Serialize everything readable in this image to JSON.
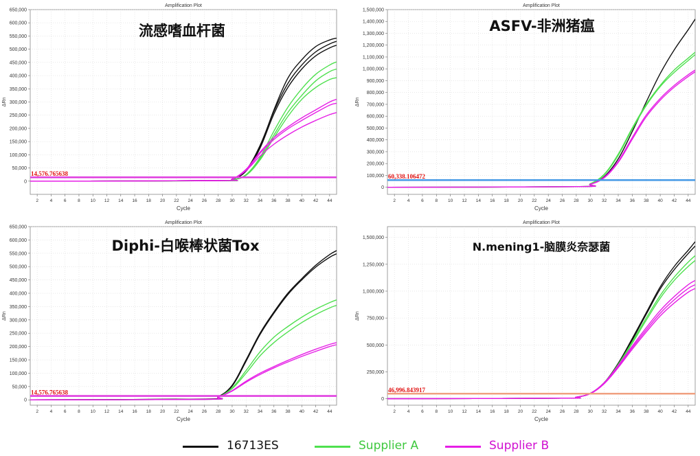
{
  "legend": [
    {
      "name": "16713ES",
      "color": "#111111",
      "label_color": "#111111"
    },
    {
      "name": "Supplier A",
      "color": "#4ee04e",
      "label_color": "#3ec83e"
    },
    {
      "name": "Supplier B",
      "color": "#e61ee6",
      "label_color": "#d010d0"
    }
  ],
  "chart_data": [
    {
      "type": "line",
      "plot_title": "Amplification Plot",
      "title": "流感嗜血杆菌",
      "xlabel": "Cycle",
      "ylabel": "ΔRn",
      "xlim": [
        1,
        45
      ],
      "ylim": [
        -50000,
        650000
      ],
      "xticks": [
        2,
        4,
        6,
        8,
        10,
        12,
        14,
        16,
        18,
        20,
        22,
        24,
        26,
        28,
        30,
        32,
        34,
        36,
        38,
        40,
        42,
        44
      ],
      "yticks": [
        0,
        50000,
        100000,
        150000,
        200000,
        250000,
        300000,
        350000,
        400000,
        450000,
        500000,
        550000,
        600000,
        650000
      ],
      "ytick_labels": [
        "0",
        "50,000",
        "100,000",
        "150,000",
        "200,000",
        "250,000",
        "300,000",
        "350,000",
        "400,000",
        "450,000",
        "500,000",
        "550,000",
        "600,000",
        "650,000"
      ],
      "threshold": {
        "label": "14,576.765638",
        "value": 14576.765638,
        "color": "#e040e0"
      },
      "grid": true,
      "series": [
        {
          "group": "16713ES",
          "color": "#111111",
          "x": [
            1,
            28,
            30,
            32,
            34,
            36,
            38,
            40,
            42,
            44,
            45
          ],
          "y": [
            0,
            2000,
            8000,
            40000,
            130000,
            270000,
            390000,
            460000,
            510000,
            535000,
            542000
          ]
        },
        {
          "group": "16713ES",
          "color": "#111111",
          "x": [
            1,
            28,
            30,
            32,
            34,
            36,
            38,
            40,
            42,
            44,
            45
          ],
          "y": [
            0,
            2000,
            8000,
            42000,
            135000,
            265000,
            370000,
            440000,
            490000,
            520000,
            530000
          ]
        },
        {
          "group": "16713ES",
          "color": "#111111",
          "x": [
            1,
            28,
            30,
            32,
            34,
            36,
            38,
            40,
            42,
            44,
            45
          ],
          "y": [
            0,
            2000,
            8000,
            38000,
            125000,
            255000,
            355000,
            425000,
            475000,
            505000,
            515000
          ]
        },
        {
          "group": "Supplier A",
          "color": "#4ee04e",
          "x": [
            1,
            28,
            30,
            32,
            34,
            36,
            38,
            40,
            42,
            44,
            45
          ],
          "y": [
            0,
            1500,
            5000,
            25000,
            90000,
            190000,
            280000,
            350000,
            405000,
            440000,
            452000
          ]
        },
        {
          "group": "Supplier A",
          "color": "#4ee04e",
          "x": [
            1,
            28,
            30,
            32,
            34,
            36,
            38,
            40,
            42,
            44,
            45
          ],
          "y": [
            0,
            1500,
            5000,
            23000,
            85000,
            175000,
            260000,
            325000,
            380000,
            415000,
            425000
          ]
        },
        {
          "group": "Supplier A",
          "color": "#4ee04e",
          "x": [
            1,
            28,
            30,
            32,
            34,
            36,
            38,
            40,
            42,
            44,
            45
          ],
          "y": [
            0,
            1500,
            5000,
            22000,
            80000,
            165000,
            245000,
            310000,
            355000,
            385000,
            392000
          ]
        },
        {
          "group": "Supplier B",
          "color": "#e61ee6",
          "x": [
            1,
            28,
            30,
            32,
            34,
            36,
            38,
            40,
            42,
            44,
            45
          ],
          "y": [
            0,
            2000,
            8000,
            45000,
            110000,
            165000,
            205000,
            240000,
            270000,
            300000,
            310000
          ]
        },
        {
          "group": "Supplier B",
          "color": "#e61ee6",
          "x": [
            1,
            28,
            30,
            32,
            34,
            36,
            38,
            40,
            42,
            44,
            45
          ],
          "y": [
            0,
            2000,
            8000,
            43000,
            105000,
            158000,
            198000,
            230000,
            260000,
            288000,
            295000
          ]
        },
        {
          "group": "Supplier B",
          "color": "#e61ee6",
          "x": [
            1,
            28,
            30,
            32,
            34,
            36,
            38,
            40,
            42,
            44,
            45
          ],
          "y": [
            0,
            2000,
            8000,
            40000,
            95000,
            140000,
            175000,
            205000,
            230000,
            252000,
            260000
          ]
        }
      ]
    },
    {
      "type": "line",
      "plot_title": "Amplification Plot",
      "title": "ASFV-非洲猪瘟",
      "xlabel": "Cycle",
      "ylabel": "ΔRn",
      "xlim": [
        1,
        45
      ],
      "ylim": [
        -60000,
        1500000
      ],
      "xticks": [
        2,
        4,
        6,
        8,
        10,
        12,
        14,
        16,
        18,
        20,
        22,
        24,
        26,
        28,
        30,
        32,
        34,
        36,
        38,
        40,
        42,
        44
      ],
      "yticks": [
        0,
        100000,
        200000,
        300000,
        400000,
        500000,
        600000,
        700000,
        800000,
        900000,
        1000000,
        1100000,
        1200000,
        1300000,
        1400000,
        1500000
      ],
      "ytick_labels": [
        "0",
        "100,000",
        "200,000",
        "300,000",
        "400,000",
        "500,000",
        "600,000",
        "700,000",
        "800,000",
        "900,000",
        "1,000,000",
        "1,100,000",
        "1,200,000",
        "1,300,000",
        "1,400,000",
        "1,500,000"
      ],
      "threshold": {
        "label": "60,338.106472",
        "value": 60338.106472,
        "color": "#4499e6"
      },
      "grid": true,
      "series": [
        {
          "group": "16713ES",
          "color": "#111111",
          "x": [
            1,
            28,
            30,
            32,
            34,
            36,
            38,
            40,
            42,
            44,
            45
          ],
          "y": [
            0,
            5000,
            25000,
            90000,
            240000,
            470000,
            720000,
            960000,
            1160000,
            1330000,
            1420000
          ]
        },
        {
          "group": "Supplier A",
          "color": "#4ee04e",
          "x": [
            1,
            28,
            30,
            32,
            34,
            36,
            38,
            40,
            42,
            44,
            45
          ],
          "y": [
            0,
            5000,
            30000,
            110000,
            280000,
            500000,
            700000,
            860000,
            990000,
            1090000,
            1140000
          ]
        },
        {
          "group": "Supplier A",
          "color": "#4ee04e",
          "x": [
            1,
            28,
            30,
            32,
            34,
            36,
            38,
            40,
            42,
            44,
            45
          ],
          "y": [
            0,
            5000,
            28000,
            105000,
            270000,
            490000,
            690000,
            850000,
            970000,
            1070000,
            1120000
          ]
        },
        {
          "group": "Supplier B",
          "color": "#e61ee6",
          "x": [
            1,
            28,
            30,
            32,
            34,
            36,
            38,
            40,
            42,
            44,
            45
          ],
          "y": [
            0,
            5000,
            25000,
            85000,
            220000,
            420000,
            610000,
            750000,
            860000,
            950000,
            990000
          ]
        },
        {
          "group": "Supplier B",
          "color": "#e61ee6",
          "x": [
            1,
            28,
            30,
            32,
            34,
            36,
            38,
            40,
            42,
            44,
            45
          ],
          "y": [
            0,
            5000,
            24000,
            80000,
            210000,
            405000,
            595000,
            735000,
            845000,
            935000,
            975000
          ]
        }
      ]
    },
    {
      "type": "line",
      "plot_title": "Amplification Plot",
      "title": "Diphi-白喉棒状菌Tox",
      "xlabel": "Cycle",
      "ylabel": "ΔRn",
      "xlim": [
        1,
        45
      ],
      "ylim": [
        -20000,
        650000
      ],
      "xticks": [
        2,
        4,
        6,
        8,
        10,
        12,
        14,
        16,
        18,
        20,
        22,
        24,
        26,
        28,
        30,
        32,
        34,
        36,
        38,
        40,
        42,
        44
      ],
      "yticks": [
        0,
        50000,
        100000,
        150000,
        200000,
        250000,
        300000,
        350000,
        400000,
        450000,
        500000,
        550000,
        600000,
        650000
      ],
      "ytick_labels": [
        "0",
        "50,000",
        "100,000",
        "150,000",
        "200,000",
        "250,000",
        "300,000",
        "350,000",
        "400,000",
        "450,000",
        "500,000",
        "550,000",
        "600,000",
        "650,000"
      ],
      "threshold": {
        "label": "14,576.765638",
        "value": 14576.765638,
        "color": "#e040e0"
      },
      "grid": true,
      "series": [
        {
          "group": "16713ES",
          "color": "#111111",
          "x": [
            1,
            26,
            28,
            30,
            32,
            34,
            36,
            38,
            40,
            42,
            44,
            45
          ],
          "y": [
            0,
            3000,
            12000,
            55000,
            150000,
            250000,
            330000,
            400000,
            455000,
            505000,
            545000,
            560000
          ]
        },
        {
          "group": "16713ES",
          "color": "#111111",
          "x": [
            1,
            26,
            28,
            30,
            32,
            34,
            36,
            38,
            40,
            42,
            44,
            45
          ],
          "y": [
            0,
            3000,
            12000,
            52000,
            145000,
            245000,
            325000,
            395000,
            450000,
            498000,
            535000,
            548000
          ]
        },
        {
          "group": "Supplier A",
          "color": "#4ee04e",
          "x": [
            1,
            26,
            28,
            30,
            32,
            34,
            36,
            38,
            40,
            42,
            44,
            45
          ],
          "y": [
            0,
            2000,
            10000,
            45000,
            110000,
            180000,
            235000,
            275000,
            310000,
            340000,
            365000,
            375000
          ]
        },
        {
          "group": "Supplier A",
          "color": "#4ee04e",
          "x": [
            1,
            26,
            28,
            30,
            32,
            34,
            36,
            38,
            40,
            42,
            44,
            45
          ],
          "y": [
            0,
            2000,
            10000,
            42000,
            100000,
            165000,
            215000,
            255000,
            290000,
            320000,
            345000,
            355000
          ]
        },
        {
          "group": "Supplier B",
          "color": "#e61ee6",
          "x": [
            1,
            26,
            28,
            30,
            32,
            34,
            36,
            38,
            40,
            42,
            44,
            45
          ],
          "y": [
            0,
            2000,
            10000,
            35000,
            70000,
            100000,
            125000,
            148000,
            170000,
            190000,
            208000,
            215000
          ]
        },
        {
          "group": "Supplier B",
          "color": "#e61ee6",
          "x": [
            1,
            26,
            28,
            30,
            32,
            34,
            36,
            38,
            40,
            42,
            44,
            45
          ],
          "y": [
            0,
            2000,
            10000,
            33000,
            66000,
            95000,
            120000,
            142000,
            163000,
            182000,
            200000,
            207000
          ]
        }
      ]
    },
    {
      "type": "line",
      "plot_title": "Amplification Plot",
      "title": "N.mening1-脑膜炎奈瑟菌",
      "xlabel": "Cycle",
      "ylabel": "ΔRn",
      "xlim": [
        1,
        45
      ],
      "ylim": [
        -60000,
        1600000
      ],
      "xticks": [
        2,
        4,
        6,
        8,
        10,
        12,
        14,
        16,
        18,
        20,
        22,
        24,
        26,
        28,
        30,
        32,
        34,
        36,
        38,
        40,
        42,
        44
      ],
      "yticks": [
        0,
        250000,
        500000,
        750000,
        1000000,
        1250000,
        1500000
      ],
      "ytick_labels": [
        "0",
        "250,000",
        "500,000",
        "750,000",
        "1,000,000",
        "1,250,000",
        "1,500,000"
      ],
      "threshold": {
        "label": "46,996.843917",
        "value": 46996.843917,
        "color": "#f0a080"
      },
      "grid": true,
      "series": [
        {
          "group": "16713ES",
          "color": "#111111",
          "x": [
            1,
            26,
            28,
            30,
            32,
            34,
            36,
            38,
            40,
            42,
            44,
            45
          ],
          "y": [
            0,
            5000,
            15000,
            50000,
            150000,
            330000,
            560000,
            800000,
            1040000,
            1230000,
            1380000,
            1460000
          ]
        },
        {
          "group": "16713ES",
          "color": "#111111",
          "x": [
            1,
            26,
            28,
            30,
            32,
            34,
            36,
            38,
            40,
            42,
            44,
            45
          ],
          "y": [
            0,
            5000,
            15000,
            48000,
            145000,
            320000,
            545000,
            785000,
            1020000,
            1200000,
            1350000,
            1420000
          ]
        },
        {
          "group": "Supplier A",
          "color": "#4ee04e",
          "x": [
            1,
            26,
            28,
            30,
            32,
            34,
            36,
            38,
            40,
            42,
            44,
            45
          ],
          "y": [
            0,
            5000,
            15000,
            50000,
            150000,
            320000,
            530000,
            750000,
            960000,
            1130000,
            1270000,
            1330000
          ]
        },
        {
          "group": "Supplier A",
          "color": "#4ee04e",
          "x": [
            1,
            26,
            28,
            30,
            32,
            34,
            36,
            38,
            40,
            42,
            44,
            45
          ],
          "y": [
            0,
            5000,
            15000,
            48000,
            145000,
            310000,
            515000,
            730000,
            935000,
            1100000,
            1230000,
            1285000
          ]
        },
        {
          "group": "Supplier B",
          "color": "#e61ee6",
          "x": [
            1,
            26,
            28,
            30,
            32,
            34,
            36,
            38,
            40,
            42,
            44,
            45
          ],
          "y": [
            0,
            5000,
            15000,
            50000,
            150000,
            310000,
            490000,
            660000,
            820000,
            950000,
            1060000,
            1100000
          ]
        },
        {
          "group": "Supplier B",
          "color": "#e61ee6",
          "x": [
            1,
            26,
            28,
            30,
            32,
            34,
            36,
            38,
            40,
            42,
            44,
            45
          ],
          "y": [
            0,
            5000,
            15000,
            48000,
            145000,
            300000,
            475000,
            640000,
            795000,
            920000,
            1025000,
            1060000
          ]
        },
        {
          "group": "Supplier B",
          "color": "#e61ee6",
          "x": [
            1,
            26,
            28,
            30,
            32,
            34,
            36,
            38,
            40,
            42,
            44,
            45
          ],
          "y": [
            0,
            5000,
            15000,
            46000,
            140000,
            290000,
            460000,
            620000,
            770000,
            890000,
            990000,
            1025000
          ]
        }
      ]
    }
  ]
}
